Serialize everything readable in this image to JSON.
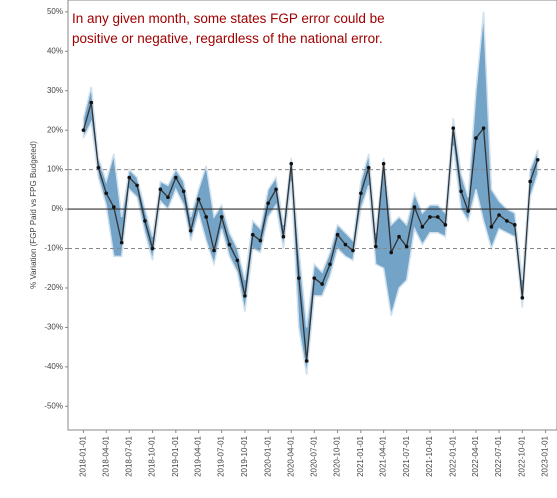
{
  "chart_data": {
    "type": "line",
    "annotation": [
      "In any given month, some states FGP error could be",
      "positive or negative, regardless of the national error."
    ],
    "y_label": "% Variation (FGP Paid vs FPG Budgeted)",
    "x": [
      "2018-01-01",
      "2018-02-01",
      "2018-03-01",
      "2018-04-01",
      "2018-05-01",
      "2018-06-01",
      "2018-07-01",
      "2018-08-01",
      "2018-09-01",
      "2018-10-01",
      "2018-11-01",
      "2018-12-01",
      "2019-01-01",
      "2019-02-01",
      "2019-03-01",
      "2019-04-01",
      "2019-05-01",
      "2019-06-01",
      "2019-07-01",
      "2019-08-01",
      "2019-09-01",
      "2019-10-01",
      "2019-11-01",
      "2019-12-01",
      "2020-01-01",
      "2020-02-01",
      "2020-03-01",
      "2020-04-01",
      "2020-05-01",
      "2020-06-01",
      "2020-07-01",
      "2020-08-01",
      "2020-09-01",
      "2020-10-01",
      "2020-11-01",
      "2020-12-01",
      "2021-01-01",
      "2021-02-01",
      "2021-03-01",
      "2021-04-01",
      "2021-05-01",
      "2021-06-01",
      "2021-07-01",
      "2021-08-01",
      "2021-09-01",
      "2021-10-01",
      "2021-11-01",
      "2021-12-01",
      "2022-01-01",
      "2022-02-01",
      "2022-03-01",
      "2022-04-01",
      "2022-05-01",
      "2022-06-01",
      "2022-07-01",
      "2022-08-01",
      "2022-09-01",
      "2022-10-01",
      "2022-11-01",
      "2022-12-01"
    ],
    "values": [
      20,
      27,
      10.5,
      4,
      0.5,
      -8.5,
      8,
      6,
      -3,
      -10,
      5,
      3,
      8,
      4.5,
      -5.5,
      2.5,
      -2,
      -10.5,
      -2,
      -9,
      -13,
      -22,
      -6.5,
      -8,
      1.5,
      5,
      -7,
      11.5,
      -17.5,
      -38.5,
      -17.5,
      -19,
      -14,
      -6.5,
      -9,
      -10.5,
      4,
      10.5,
      -9.5,
      11.5,
      -11,
      -7,
      -9.5,
      0.5,
      -4.5,
      -2,
      -2,
      -4,
      20.5,
      4.5,
      -0.5,
      18,
      20.5,
      -4.5,
      -1.5,
      -3,
      -4,
      -22.5,
      7,
      12.5
    ],
    "color": "#333333",
    "band": {
      "color": "#5b93bd",
      "low": [
        18,
        22,
        8,
        1,
        -12,
        -12,
        5,
        3,
        -6,
        -13,
        2,
        0,
        5,
        1,
        -8,
        -1,
        -8,
        -14,
        -5,
        -12,
        -16,
        -26,
        -10,
        -11,
        -2,
        1,
        -10,
        7,
        -30,
        -42,
        -22,
        -22,
        -17,
        -10,
        -12,
        -13,
        0,
        6,
        -14,
        -15,
        -27,
        -20,
        -18,
        -5,
        -9,
        -6,
        -6,
        -7,
        16,
        0,
        -3,
        5,
        -3,
        -10,
        -5,
        -6,
        -7,
        -25,
        3,
        9
      ],
      "high": [
        23,
        31,
        13,
        7,
        14,
        -2,
        10,
        8,
        0,
        -7,
        7,
        6,
        10,
        7,
        -2,
        5,
        11,
        -2,
        1,
        -6,
        -10,
        -18,
        -3,
        -5,
        5,
        8,
        -4,
        13,
        -10,
        -30,
        -14,
        -16,
        -11,
        -4,
        -6,
        -8,
        7,
        14,
        -6,
        13,
        -4,
        -2,
        -4,
        4,
        -1,
        1,
        1,
        -1,
        23,
        9,
        3,
        30,
        50,
        5,
        2,
        0,
        -1,
        -18,
        10,
        15
      ]
    },
    "xlim": [
      "2017-11-01",
      "2023-02-15"
    ],
    "xticks": [
      "2018-01-01",
      "2018-04-01",
      "2018-07-01",
      "2018-10-01",
      "2019-01-01",
      "2019-04-01",
      "2019-07-01",
      "2019-10-01",
      "2020-01-01",
      "2020-04-01",
      "2020-07-01",
      "2020-10-01",
      "2021-01-01",
      "2021-04-01",
      "2021-07-01",
      "2021-10-01",
      "2022-01-01",
      "2022-04-01",
      "2022-07-01",
      "2022-10-01",
      "2023-01-01"
    ],
    "ylim": [
      -56,
      53
    ],
    "yticks": [
      {
        "value": -50,
        "label": "-50%"
      },
      {
        "value": -40,
        "label": "-40%"
      },
      {
        "value": -30,
        "label": "-30%"
      },
      {
        "value": -20,
        "label": "-20%"
      },
      {
        "value": -10,
        "label": "-10%"
      },
      {
        "value": 0,
        "label": "0%"
      },
      {
        "value": 10,
        "label": "10%"
      },
      {
        "value": 20,
        "label": "20%"
      },
      {
        "value": 30,
        "label": "30%"
      },
      {
        "value": 40,
        "label": "40%"
      },
      {
        "value": 50,
        "label": "50%"
      }
    ],
    "reference_lines": [
      {
        "value": -10,
        "style": "dashed"
      },
      {
        "value": 0,
        "style": "solid"
      },
      {
        "value": 10,
        "style": "dashed"
      }
    ]
  }
}
